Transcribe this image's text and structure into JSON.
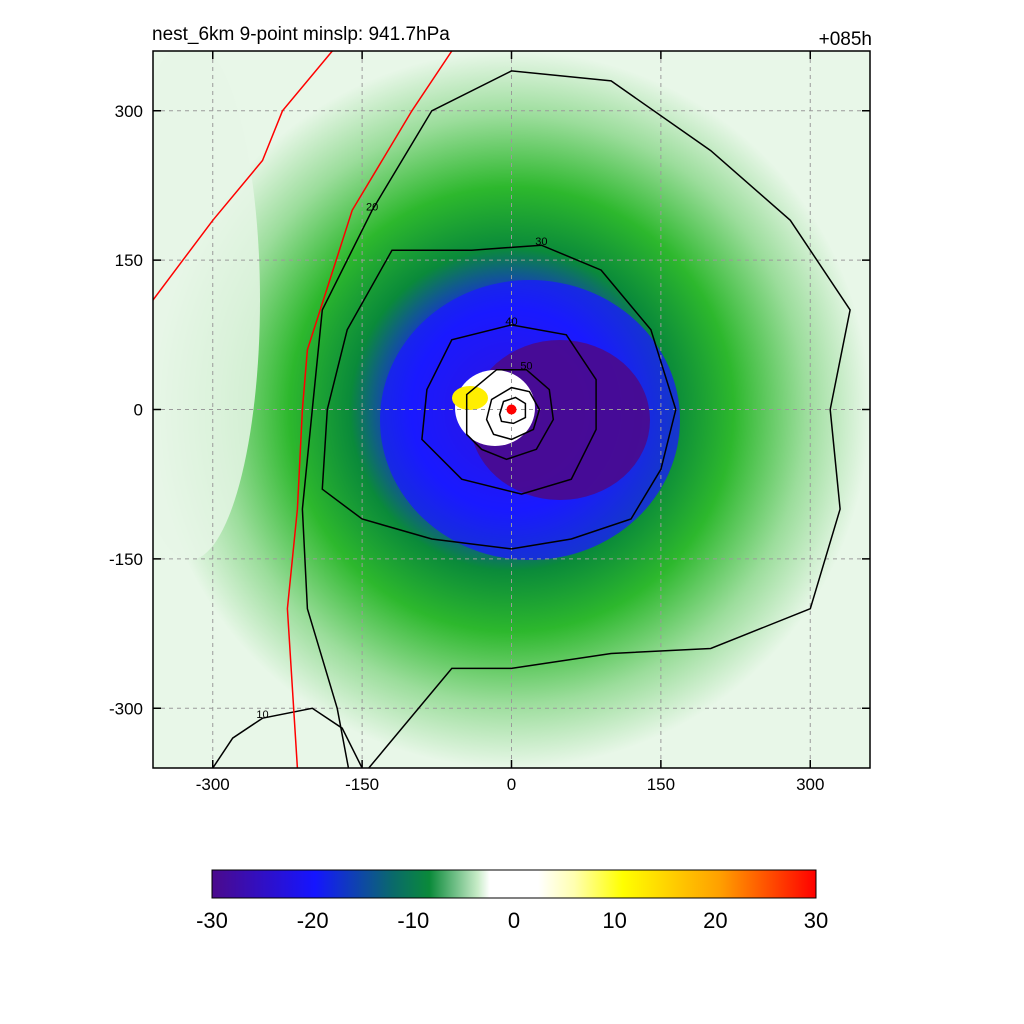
{
  "chart_data": {
    "type": "heatmap",
    "title_left": "nest_6km  9-point minslp: 941.7hPa",
    "title_right": "+085h",
    "xlabel": "",
    "ylabel": "",
    "xlim": [
      -360,
      360
    ],
    "ylim": [
      -360,
      360
    ],
    "x_ticks": [
      -300,
      -150,
      0,
      150,
      300
    ],
    "y_ticks": [
      -300,
      -150,
      0,
      150,
      300
    ],
    "grid": true,
    "center_marker": {
      "x": 0,
      "y": 0,
      "color": "#ff0000"
    },
    "fill_levels": [
      -30,
      -20,
      -10,
      0,
      10,
      20,
      30
    ],
    "fill_palette": {
      "strong_negative": "#4b0a8c",
      "negative": "#1515ff",
      "mid_negative": "#0a8a3a",
      "weak_negative": "#2db82d",
      "faint_negative": "#c8ecc8",
      "zero": "#ffffff",
      "weak_positive": "#ffff00",
      "strong_positive": "#ff0000"
    },
    "contour_color": "#000000",
    "boundary_color": "#ff0000",
    "contours": [
      {
        "label": "10",
        "points": [
          [
            -300,
            -360
          ],
          [
            -280,
            -330
          ],
          [
            -250,
            -310
          ],
          [
            -200,
            -300
          ],
          [
            -170,
            -320
          ],
          [
            -150,
            -360
          ]
        ]
      },
      {
        "label": "20",
        "points": [
          [
            -160,
            -380
          ],
          [
            -175,
            -300
          ],
          [
            -205,
            -200
          ],
          [
            -210,
            -100
          ],
          [
            -200,
            0
          ],
          [
            -190,
            100
          ],
          [
            -140,
            200
          ],
          [
            -80,
            300
          ],
          [
            0,
            340
          ],
          [
            100,
            330
          ],
          [
            200,
            260
          ],
          [
            280,
            190
          ],
          [
            340,
            100
          ],
          [
            320,
            0
          ],
          [
            330,
            -100
          ],
          [
            300,
            -200
          ],
          [
            200,
            -240
          ],
          [
            100,
            -245
          ],
          [
            0,
            -260
          ],
          [
            -60,
            -260
          ]
        ]
      },
      {
        "label": "30",
        "points": [
          [
            -190,
            -80
          ],
          [
            -185,
            0
          ],
          [
            -165,
            80
          ],
          [
            -120,
            160
          ],
          [
            -40,
            160
          ],
          [
            30,
            165
          ],
          [
            90,
            140
          ],
          [
            140,
            80
          ],
          [
            165,
            0
          ],
          [
            150,
            -60
          ],
          [
            120,
            -110
          ],
          [
            60,
            -130
          ],
          [
            0,
            -140
          ],
          [
            -80,
            -130
          ],
          [
            -150,
            -110
          ]
        ]
      },
      {
        "label": "40",
        "points": [
          [
            -90,
            -30
          ],
          [
            -85,
            20
          ],
          [
            -60,
            70
          ],
          [
            0,
            85
          ],
          [
            55,
            75
          ],
          [
            85,
            30
          ],
          [
            85,
            -20
          ],
          [
            60,
            -70
          ],
          [
            10,
            -85
          ],
          [
            -50,
            -70
          ]
        ]
      },
      {
        "label": "50",
        "points": [
          [
            -45,
            -25
          ],
          [
            -45,
            15
          ],
          [
            -15,
            40
          ],
          [
            15,
            40
          ],
          [
            38,
            20
          ],
          [
            42,
            -10
          ],
          [
            25,
            -40
          ],
          [
            -5,
            -50
          ],
          [
            -30,
            -40
          ]
        ]
      },
      {
        "label": "",
        "points": [
          [
            -25,
            -10
          ],
          [
            -20,
            10
          ],
          [
            0,
            22
          ],
          [
            18,
            18
          ],
          [
            28,
            0
          ],
          [
            22,
            -20
          ],
          [
            0,
            -30
          ],
          [
            -18,
            -25
          ]
        ]
      },
      {
        "label": "",
        "points": [
          [
            -12,
            -5
          ],
          [
            -8,
            8
          ],
          [
            4,
            12
          ],
          [
            14,
            6
          ],
          [
            14,
            -8
          ],
          [
            2,
            -14
          ],
          [
            -10,
            -12
          ]
        ]
      }
    ],
    "boundary_line": [
      [
        -360,
        110
      ],
      [
        -330,
        150
      ],
      [
        -300,
        190
      ],
      [
        -250,
        250
      ],
      [
        -230,
        300
      ],
      [
        -180,
        360
      ]
    ],
    "boundary_line_2": [
      [
        -215,
        -360
      ],
      [
        -225,
        -200
      ],
      [
        -215,
        -100
      ],
      [
        -210,
        0
      ],
      [
        -205,
        60
      ],
      [
        -160,
        200
      ],
      [
        -100,
        300
      ],
      [
        -60,
        360
      ]
    ],
    "colorbar": {
      "tick_labels": [
        "-30",
        "-20",
        "-10",
        "0",
        "10",
        "20",
        "30"
      ]
    }
  }
}
